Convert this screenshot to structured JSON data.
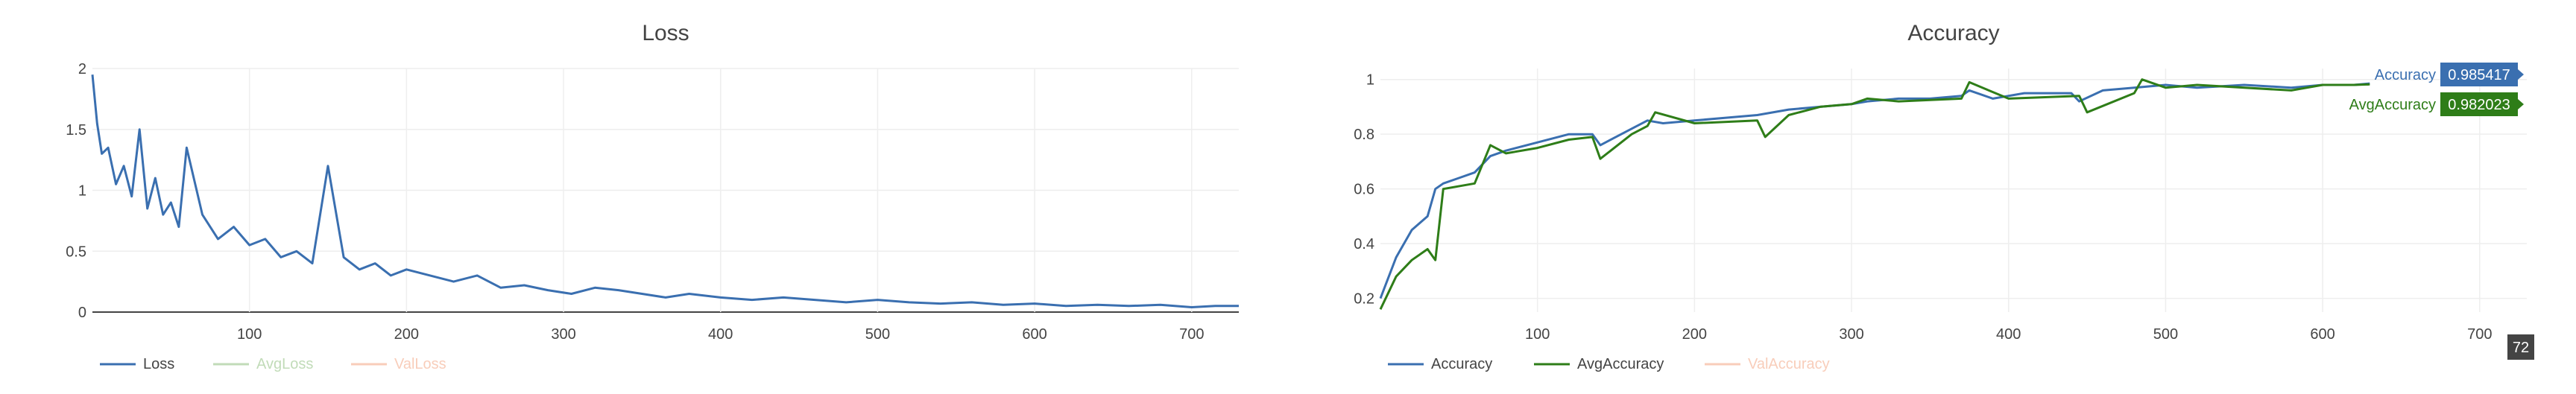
{
  "chart_data": [
    {
      "type": "line",
      "title": "Loss",
      "xlabel": "",
      "ylabel": "",
      "xlim": [
        0,
        730
      ],
      "ylim": [
        0,
        2
      ],
      "x_ticks": [
        100,
        200,
        300,
        400,
        500,
        600,
        700
      ],
      "y_ticks": [
        0,
        0.5,
        1,
        1.5,
        2
      ],
      "y_tick_labels": [
        "0",
        "0.5",
        "1",
        "1.5",
        "2"
      ],
      "grid": true,
      "legend_position": "bottom-left",
      "series": [
        {
          "name": "Loss",
          "color": "#3a6fb0",
          "visible": true,
          "x": [
            0,
            3,
            6,
            10,
            15,
            20,
            25,
            30,
            35,
            40,
            45,
            50,
            55,
            60,
            70,
            80,
            90,
            100,
            110,
            120,
            130,
            140,
            150,
            160,
            170,
            180,
            190,
            200,
            215,
            230,
            245,
            260,
            275,
            290,
            305,
            320,
            335,
            350,
            365,
            380,
            400,
            420,
            440,
            460,
            480,
            500,
            520,
            540,
            560,
            580,
            600,
            620,
            640,
            660,
            680,
            700,
            715,
            730
          ],
          "values": [
            1.95,
            1.55,
            1.3,
            1.35,
            1.05,
            1.2,
            0.95,
            1.5,
            0.85,
            1.1,
            0.8,
            0.9,
            0.7,
            1.35,
            0.8,
            0.6,
            0.7,
            0.55,
            0.6,
            0.45,
            0.5,
            0.4,
            1.2,
            0.45,
            0.35,
            0.4,
            0.3,
            0.35,
            0.3,
            0.25,
            0.3,
            0.2,
            0.22,
            0.18,
            0.15,
            0.2,
            0.18,
            0.15,
            0.12,
            0.15,
            0.12,
            0.1,
            0.12,
            0.1,
            0.08,
            0.1,
            0.08,
            0.07,
            0.08,
            0.06,
            0.07,
            0.05,
            0.06,
            0.05,
            0.06,
            0.04,
            0.05,
            0.05
          ]
        },
        {
          "name": "AvgLoss",
          "color": "#8fbf7f",
          "visible": false,
          "x": [],
          "values": []
        },
        {
          "name": "ValLoss",
          "color": "#f4a582",
          "visible": false,
          "x": [],
          "values": []
        }
      ]
    },
    {
      "type": "line",
      "title": "Accuracy",
      "xlabel": "",
      "ylabel": "",
      "xlim": [
        0,
        730
      ],
      "ylim": [
        0.15,
        1.04
      ],
      "x_ticks": [
        100,
        200,
        300,
        400,
        500,
        600,
        700
      ],
      "y_ticks": [
        0.2,
        0.4,
        0.6,
        0.8,
        1
      ],
      "y_tick_labels": [
        "0.2",
        "0.4",
        "0.6",
        "0.8",
        "1"
      ],
      "grid": true,
      "legend_position": "bottom-left",
      "hover_x_label": "72",
      "series": [
        {
          "name": "Accuracy",
          "color": "#3a6fb0",
          "visible": true,
          "hover_value": "0.985417",
          "x": [
            0,
            10,
            20,
            30,
            35,
            40,
            50,
            60,
            70,
            80,
            100,
            120,
            135,
            140,
            160,
            170,
            180,
            200,
            220,
            240,
            260,
            280,
            300,
            310,
            330,
            350,
            370,
            375,
            390,
            410,
            440,
            445,
            460,
            480,
            500,
            520,
            550,
            580,
            600,
            620,
            630
          ],
          "values": [
            0.2,
            0.35,
            0.45,
            0.5,
            0.6,
            0.62,
            0.64,
            0.66,
            0.72,
            0.74,
            0.77,
            0.8,
            0.8,
            0.76,
            0.82,
            0.85,
            0.84,
            0.85,
            0.86,
            0.87,
            0.89,
            0.9,
            0.91,
            0.92,
            0.93,
            0.93,
            0.94,
            0.96,
            0.93,
            0.95,
            0.95,
            0.92,
            0.96,
            0.97,
            0.98,
            0.97,
            0.98,
            0.97,
            0.98,
            0.98,
            0.985417
          ]
        },
        {
          "name": "AvgAccuracy",
          "color": "#2e7d18",
          "visible": true,
          "hover_value": "0.982023",
          "x": [
            0,
            10,
            20,
            30,
            35,
            40,
            60,
            70,
            80,
            100,
            120,
            135,
            140,
            160,
            170,
            175,
            200,
            240,
            245,
            260,
            280,
            300,
            310,
            330,
            370,
            375,
            400,
            445,
            450,
            480,
            485,
            500,
            520,
            580,
            600,
            620,
            630
          ],
          "values": [
            0.16,
            0.28,
            0.34,
            0.38,
            0.34,
            0.6,
            0.62,
            0.76,
            0.73,
            0.75,
            0.78,
            0.79,
            0.71,
            0.8,
            0.83,
            0.88,
            0.84,
            0.85,
            0.79,
            0.87,
            0.9,
            0.91,
            0.93,
            0.92,
            0.93,
            0.99,
            0.93,
            0.94,
            0.88,
            0.95,
            1.0,
            0.97,
            0.98,
            0.96,
            0.98,
            0.98,
            0.982023
          ]
        },
        {
          "name": "ValAccuracy",
          "color": "#f4a582",
          "visible": false,
          "x": [],
          "values": []
        }
      ]
    }
  ]
}
